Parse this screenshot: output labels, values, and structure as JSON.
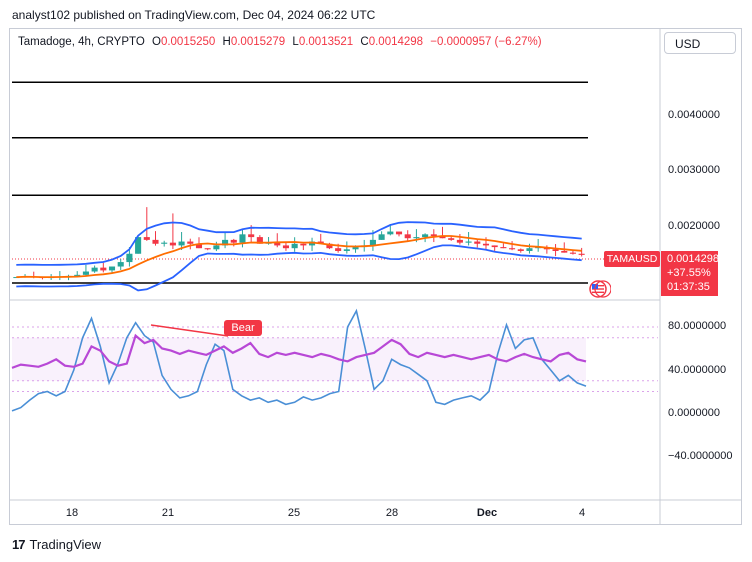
{
  "header": {
    "publisher": "analyst102 published on TradingView.com, Dec 04, 2024 06:22 UTC"
  },
  "legend": {
    "symbol": "Tamadoge, 4h, CRYPTO",
    "open_label": "O",
    "open": "0.0015250",
    "high_label": "H",
    "high": "0.0015279",
    "low_label": "L",
    "low": "0.0013521",
    "close_label": "C",
    "close": "0.0014298",
    "change": "−0.0000957 (−6.27%)"
  },
  "currency_button": "USD",
  "price_scale": [
    "0.0040000",
    "0.0030000",
    "0.0020000"
  ],
  "rsi_scale": [
    "80.0000000",
    "40.0000000",
    "0.0000000",
    "−40.0000000"
  ],
  "symbol_tag": "TAMAUSD",
  "price_box": {
    "price": "0.0014298",
    "change_pct": "+37.55%",
    "countdown": "01:37:35"
  },
  "bear_label": "Bear",
  "branding": {
    "logo": "17",
    "name": "TradingView"
  },
  "colors": {
    "up": "#26a69a",
    "down": "#f23645",
    "bb": "#2962ff",
    "basis": "#ff6d00",
    "rsi": "#b848d6",
    "stoch": "#4a8fd6"
  },
  "chart_data": {
    "type": "candlestick",
    "x_ticks": [
      "18",
      "21",
      "25",
      "28",
      "Dec",
      "4"
    ],
    "horizontal_levels": [
      0.0045,
      0.0035,
      0.0025,
      0.001
    ],
    "price_ylim": [
      0.0005,
      0.005
    ],
    "last_candle": {
      "open": 0.001525,
      "high": 0.0015279,
      "low": 0.0013521,
      "close": 0.0014298
    },
    "candles_close": [
      0.00108,
      0.00109,
      0.00108,
      0.00107,
      0.00108,
      0.00109,
      0.0011,
      0.00112,
      0.00118,
      0.00125,
      0.0012,
      0.00127,
      0.00135,
      0.0015,
      0.0018,
      0.00175,
      0.00168,
      0.0017,
      0.00165,
      0.00172,
      0.00168,
      0.0016,
      0.00158,
      0.00165,
      0.00175,
      0.0017,
      0.00185,
      0.0018,
      0.00168,
      0.0017,
      0.00165,
      0.0016,
      0.00168,
      0.00165,
      0.00172,
      0.00168,
      0.0016,
      0.00155,
      0.00158,
      0.00162,
      0.00165,
      0.00175,
      0.00185,
      0.0019,
      0.00185,
      0.00178,
      0.0018,
      0.00185,
      0.00182,
      0.00178,
      0.00175,
      0.0017,
      0.00172,
      0.00168,
      0.00165,
      0.00162,
      0.0016,
      0.00158,
      0.00155,
      0.0016,
      0.00162,
      0.00158,
      0.00155,
      0.00152,
      0.0015,
      0.00148
    ],
    "rsi_ylim": [
      -60,
      100
    ],
    "rsi_bands": [
      70,
      30
    ],
    "rsi_values": [
      42,
      45,
      44,
      43,
      46,
      50,
      44,
      43,
      46,
      62,
      58,
      48,
      44,
      46,
      72,
      65,
      68,
      60,
      58,
      55,
      58,
      56,
      54,
      58,
      62,
      56,
      60,
      65,
      55,
      52,
      56,
      54,
      56,
      54,
      52,
      55,
      53,
      50,
      48,
      52,
      54,
      56,
      62,
      68,
      64,
      55,
      52,
      56,
      54,
      52,
      54,
      52,
      50,
      52,
      54,
      50,
      48,
      52,
      55,
      52,
      50,
      48,
      54,
      56,
      50,
      48
    ],
    "stoch_values": [
      2,
      5,
      12,
      18,
      20,
      16,
      20,
      40,
      70,
      88,
      62,
      28,
      46,
      70,
      84,
      72,
      66,
      35,
      22,
      14,
      16,
      20,
      45,
      64,
      58,
      22,
      16,
      12,
      14,
      10,
      12,
      8,
      10,
      15,
      12,
      14,
      18,
      20,
      80,
      95,
      60,
      22,
      30,
      50,
      45,
      42,
      36,
      30,
      10,
      8,
      12,
      14,
      16,
      12,
      20,
      55,
      82,
      60,
      68,
      70,
      50,
      40,
      30,
      35,
      28,
      25
    ],
    "annotation": {
      "text": "Bear"
    }
  }
}
